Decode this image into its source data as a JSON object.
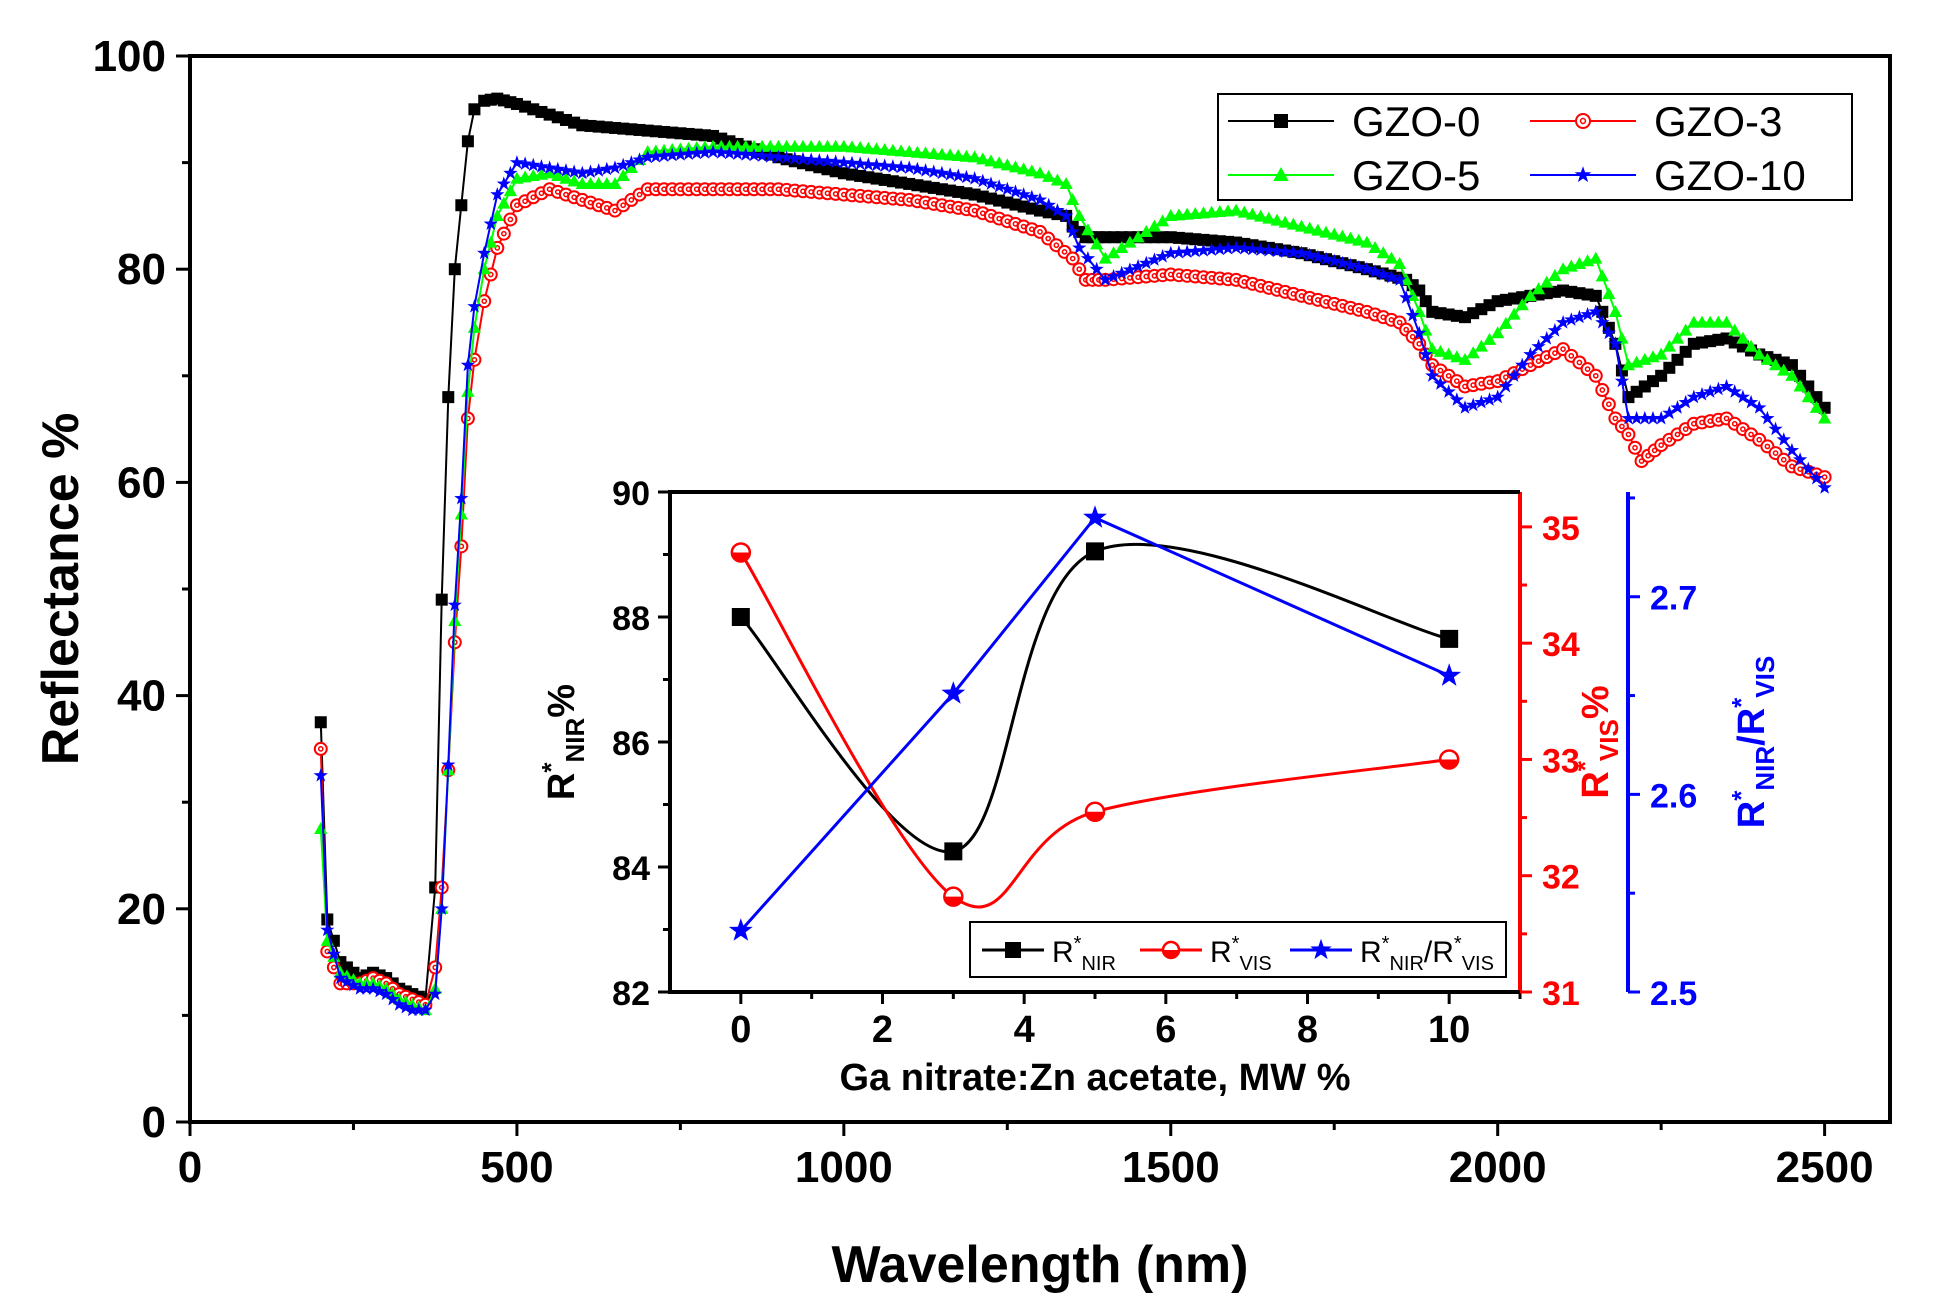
{
  "chart_data": [
    {
      "type": "line",
      "xlabel": "Wavelength (nm)",
      "ylabel": "Reflectance %",
      "xlim": [
        0,
        2600
      ],
      "ylim": [
        0,
        100
      ],
      "xticks": [
        0,
        500,
        1000,
        1500,
        2000,
        2500
      ],
      "yticks": [
        0,
        20,
        40,
        60,
        80,
        100
      ],
      "legend_position": "top-right",
      "series": [
        {
          "name": "GZO-0",
          "color": "#000000",
          "marker": "square",
          "x": [
            200,
            210,
            230,
            260,
            280,
            300,
            320,
            340,
            360,
            375,
            385,
            395,
            405,
            415,
            425,
            435,
            450,
            470,
            500,
            550,
            600,
            700,
            800,
            900,
            1000,
            1100,
            1200,
            1300,
            1340,
            1350,
            1370,
            1400,
            1500,
            1600,
            1700,
            1800,
            1860,
            1880,
            1900,
            1950,
            2000,
            2050,
            2100,
            2150,
            2180,
            2200,
            2250,
            2300,
            2350,
            2400,
            2450,
            2500
          ],
          "y": [
            37.5,
            19,
            15,
            13.5,
            14,
            13.5,
            12.5,
            12,
            11.5,
            22,
            49,
            68,
            80,
            86,
            92,
            95,
            95.8,
            96,
            95.5,
            94.5,
            93.5,
            93,
            92.5,
            90.5,
            89,
            88,
            87,
            85.5,
            85,
            84,
            83,
            83,
            83,
            82.5,
            81.5,
            80,
            79,
            78,
            76,
            75.5,
            77,
            77.5,
            78,
            77.5,
            73,
            68,
            70,
            73,
            73.5,
            72,
            71,
            67
          ]
        },
        {
          "name": "GZO-3",
          "color": "#ff0000",
          "marker": "circle-open",
          "x": [
            200,
            210,
            230,
            260,
            280,
            300,
            320,
            340,
            360,
            375,
            385,
            395,
            405,
            415,
            425,
            435,
            450,
            470,
            500,
            550,
            600,
            650,
            700,
            800,
            900,
            1000,
            1100,
            1200,
            1300,
            1350,
            1370,
            1400,
            1500,
            1600,
            1700,
            1800,
            1850,
            1880,
            1900,
            1950,
            2000,
            2050,
            2100,
            2150,
            2180,
            2200,
            2220,
            2250,
            2300,
            2350,
            2400,
            2450,
            2500
          ],
          "y": [
            35,
            16,
            13,
            13,
            13.5,
            13,
            12,
            11.5,
            11,
            14.5,
            22,
            33,
            45,
            54,
            66,
            71.5,
            77,
            82,
            86,
            87.5,
            86.5,
            85.5,
            87.5,
            87.5,
            87.5,
            87,
            86.5,
            85.5,
            83.5,
            81,
            79,
            79,
            79.5,
            79,
            77.5,
            76,
            75,
            73,
            71,
            69,
            69.5,
            71,
            72.5,
            70,
            66,
            64.5,
            62,
            63.5,
            65.5,
            66,
            64,
            61.5,
            60.5
          ]
        },
        {
          "name": "GZO-5",
          "color": "#00ff00",
          "marker": "triangle",
          "x": [
            200,
            210,
            230,
            260,
            280,
            300,
            320,
            340,
            360,
            375,
            385,
            395,
            405,
            415,
            425,
            435,
            450,
            470,
            500,
            550,
            600,
            650,
            700,
            800,
            900,
            1000,
            1100,
            1200,
            1300,
            1340,
            1360,
            1400,
            1500,
            1600,
            1700,
            1800,
            1850,
            1880,
            1900,
            1950,
            2000,
            2050,
            2100,
            2150,
            2180,
            2200,
            2250,
            2300,
            2350,
            2400,
            2450,
            2500
          ],
          "y": [
            27.5,
            17,
            14,
            13,
            13,
            12.5,
            11.5,
            11,
            10.5,
            12.5,
            20,
            33,
            47,
            57,
            68.5,
            74.5,
            80,
            85,
            88.5,
            89,
            88,
            88,
            91,
            91.5,
            91.5,
            91.5,
            91,
            90.5,
            89,
            88,
            85,
            81,
            85,
            85.5,
            84,
            82.5,
            80.5,
            76,
            72.5,
            71.5,
            74,
            77.5,
            80,
            81,
            76,
            71,
            72,
            75,
            75,
            72,
            70,
            66
          ]
        },
        {
          "name": "GZO-10",
          "color": "#0000ff",
          "marker": "star",
          "x": [
            200,
            210,
            230,
            260,
            280,
            300,
            320,
            340,
            360,
            375,
            385,
            395,
            405,
            415,
            425,
            435,
            450,
            470,
            500,
            550,
            600,
            650,
            700,
            800,
            900,
            1000,
            1100,
            1200,
            1300,
            1340,
            1360,
            1400,
            1500,
            1600,
            1700,
            1800,
            1850,
            1880,
            1900,
            1950,
            2000,
            2050,
            2100,
            2150,
            2180,
            2200,
            2250,
            2300,
            2350,
            2400,
            2450,
            2500
          ],
          "y": [
            32.5,
            18,
            13.5,
            12.5,
            12.5,
            12,
            11,
            10.5,
            10.5,
            12,
            20,
            33.5,
            48.5,
            58.5,
            71,
            76.5,
            81.5,
            87,
            90,
            89.5,
            89,
            89.5,
            90.5,
            91,
            90.5,
            90,
            89.5,
            88.5,
            86.5,
            85,
            82,
            79,
            81.5,
            82,
            81.5,
            80,
            79,
            74,
            70,
            67,
            68,
            72,
            75,
            76,
            73,
            66,
            66,
            68,
            69,
            67,
            63,
            59.5
          ]
        }
      ]
    },
    {
      "type": "line",
      "xlabel": "Ga nitrate:Zn acetate, MW %",
      "xlim": [
        -1,
        11
      ],
      "xticks": [
        0,
        2,
        4,
        6,
        8,
        10
      ],
      "legend_position": "bottom-right",
      "axes": [
        {
          "id": "left",
          "label_main": "R",
          "label_sup": "*",
          "label_sub": "NIR",
          "label_tail": "%",
          "color": "#000000",
          "ylim": [
            82,
            90
          ],
          "yticks": [
            82,
            84,
            86,
            88,
            90
          ]
        },
        {
          "id": "right1",
          "label_main": "R",
          "label_sup": "*",
          "label_sub": "VIS",
          "label_tail": "%",
          "color": "#ff0000",
          "ylim": [
            31,
            35.3
          ],
          "yticks": [
            31,
            32,
            33,
            34,
            35
          ]
        },
        {
          "id": "right2",
          "label_main": "R",
          "label_sup": "*",
          "label_sub": "NIR",
          "label_slash": "/R",
          "label_sup2": "*",
          "label_sub2": "VIS",
          "color": "#0000ff",
          "ylim": [
            2.5,
            2.753
          ],
          "yticks": [
            2.5,
            2.6,
            2.7
          ]
        }
      ],
      "series": [
        {
          "name_main": "R",
          "name_sup": "*",
          "name_sub": "NIR",
          "axis": "left",
          "color": "#000000",
          "marker": "square",
          "x": [
            0,
            3,
            5,
            10
          ],
          "y": [
            88.0,
            84.25,
            89.05,
            87.65
          ]
        },
        {
          "name_main": "R",
          "name_sup": "*",
          "name_sub": "VIS",
          "axis": "right1",
          "color": "#ff0000",
          "marker": "half-circle",
          "x": [
            0,
            3,
            5,
            10
          ],
          "y": [
            34.78,
            31.82,
            32.55,
            33.0
          ]
        },
        {
          "name_main": "R",
          "name_sup": "*",
          "name_sub": "NIR",
          "name_slash": "/R",
          "name_sup2": "*",
          "name_sub2": "VIS",
          "axis": "right2",
          "color": "#0000ff",
          "marker": "star",
          "x": [
            0,
            3,
            5,
            10
          ],
          "y": [
            2.531,
            2.651,
            2.74,
            2.66
          ]
        }
      ]
    }
  ]
}
